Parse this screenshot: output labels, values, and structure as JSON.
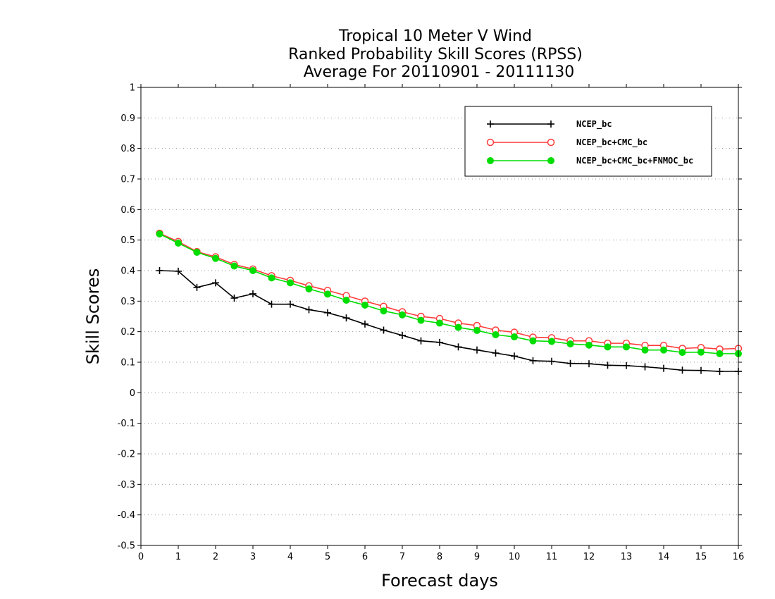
{
  "chart_data": {
    "type": "line",
    "title": [
      "Tropical 10 Meter V Wind",
      "Ranked Probability Skill Scores (RPSS)",
      "Average For 20110901 - 20111130"
    ],
    "xlabel": "Forecast days",
    "ylabel": "Skill Scores",
    "xlim": [
      0,
      16
    ],
    "ylim": [
      -0.5,
      1
    ],
    "xticks": [
      "0",
      "1",
      "2",
      "3",
      "4",
      "5",
      "6",
      "7",
      "8",
      "9",
      "10",
      "11",
      "12",
      "13",
      "14",
      "15",
      "16"
    ],
    "yticks": [
      "-0.5",
      "-0.4",
      "-0.3",
      "-0.2",
      "-0.1",
      "0",
      "0.1",
      "0.2",
      "0.3",
      "0.4",
      "0.5",
      "0.6",
      "0.7",
      "0.8",
      "0.9",
      "1"
    ],
    "grid": "horizontal dotted",
    "legend_position": "top-right",
    "x": [
      0.5,
      1,
      1.5,
      2,
      2.5,
      3,
      3.5,
      4,
      4.5,
      5,
      5.5,
      6,
      6.5,
      7,
      7.5,
      8,
      8.5,
      9,
      9.5,
      10,
      10.5,
      11,
      11.5,
      12,
      12.5,
      13,
      13.5,
      14,
      14.5,
      15,
      15.5,
      16
    ],
    "series": [
      {
        "name": "NCEP_bc",
        "color": "#000000",
        "marker": "plus",
        "values": [
          0.4,
          0.398,
          0.345,
          0.36,
          0.31,
          0.324,
          0.29,
          0.29,
          0.272,
          0.262,
          0.245,
          0.225,
          0.205,
          0.188,
          0.17,
          0.165,
          0.15,
          0.14,
          0.13,
          0.12,
          0.105,
          0.103,
          0.096,
          0.095,
          0.09,
          0.089,
          0.085,
          0.08,
          0.074,
          0.073,
          0.07,
          0.07
        ]
      },
      {
        "name": "NCEP_bc+CMC_bc",
        "color": "#ff3b3b",
        "marker": "open-circle",
        "values": [
          0.522,
          0.495,
          0.462,
          0.445,
          0.42,
          0.405,
          0.383,
          0.368,
          0.35,
          0.335,
          0.318,
          0.3,
          0.283,
          0.265,
          0.25,
          0.243,
          0.228,
          0.22,
          0.205,
          0.198,
          0.182,
          0.18,
          0.17,
          0.17,
          0.162,
          0.162,
          0.155,
          0.155,
          0.145,
          0.148,
          0.143,
          0.145
        ]
      },
      {
        "name": "NCEP_bc+CMC_bc+FNMOC_bc",
        "color": "#00dd00",
        "marker": "filled-circle",
        "values": [
          0.52,
          0.49,
          0.46,
          0.44,
          0.415,
          0.4,
          0.376,
          0.36,
          0.34,
          0.323,
          0.303,
          0.287,
          0.268,
          0.255,
          0.237,
          0.228,
          0.214,
          0.204,
          0.19,
          0.183,
          0.17,
          0.168,
          0.16,
          0.156,
          0.15,
          0.15,
          0.14,
          0.14,
          0.132,
          0.133,
          0.128,
          0.128
        ]
      }
    ]
  }
}
